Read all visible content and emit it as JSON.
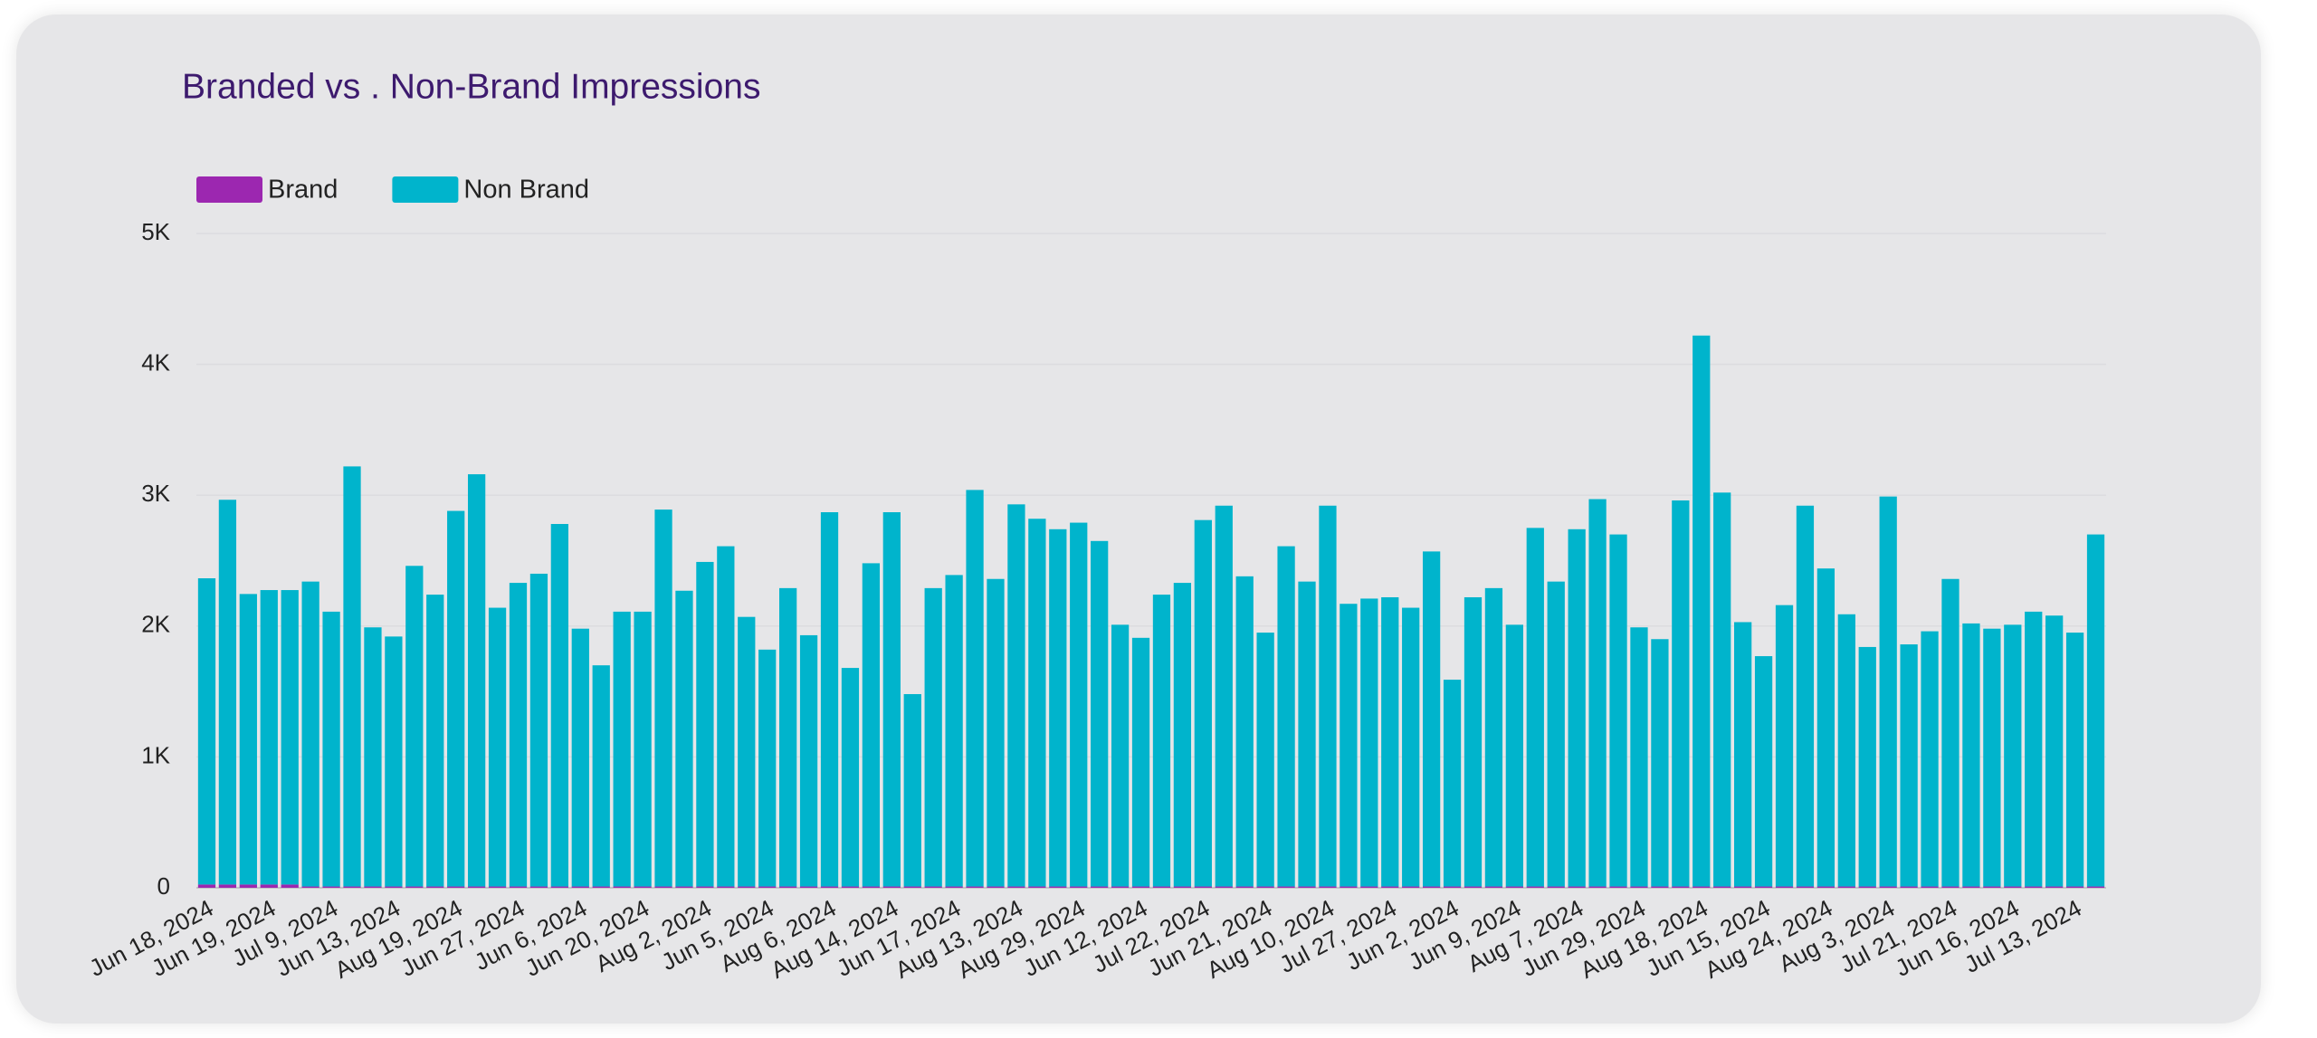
{
  "chart_data": {
    "type": "stacked_bar",
    "title": "Branded vs . Non-Brand Impressions",
    "categories": [
      "Jun 18, 2024",
      null,
      null,
      "Jun 19, 2024",
      null,
      null,
      "Jul 9, 2024",
      null,
      null,
      "Jun 13, 2024",
      null,
      null,
      "Aug 19, 2024",
      null,
      null,
      "Jun 27, 2024",
      null,
      null,
      "Jun 6, 2024",
      null,
      null,
      "Jun 20, 2024",
      null,
      null,
      "Aug 2, 2024",
      null,
      null,
      "Jun 5, 2024",
      null,
      null,
      "Aug 6, 2024",
      null,
      null,
      "Aug 14, 2024",
      null,
      null,
      "Jun 17, 2024",
      null,
      null,
      "Aug 13, 2024",
      null,
      null,
      "Aug 29, 2024",
      null,
      null,
      "Jun 12, 2024",
      null,
      null,
      "Jul 22, 2024",
      null,
      null,
      "Jun 21, 2024",
      null,
      null,
      "Aug 10, 2024",
      null,
      null,
      "Jul 27, 2024",
      null,
      null,
      "Jun 2, 2024",
      null,
      null,
      "Jun 9, 2024",
      null,
      null,
      "Aug 7, 2024",
      null,
      null,
      "Jun 29, 2024",
      null,
      null,
      "Aug 18, 2024",
      null,
      null,
      "Jun 15, 2024",
      null,
      null,
      "Aug 24, 2024",
      null,
      null,
      "Aug 3, 2024",
      null,
      null,
      "Jul 21, 2024",
      null,
      null,
      "Jun 16, 2024",
      null,
      null,
      "Jul 13, 2024",
      null
    ],
    "series": [
      {
        "name": "Brand",
        "color": "#9c27b0",
        "values": [
          25,
          25,
          25,
          25,
          25,
          10,
          10,
          10,
          10,
          10,
          10,
          10,
          10,
          10,
          10,
          10,
          10,
          10,
          10,
          10,
          10,
          10,
          10,
          10,
          10,
          10,
          10,
          10,
          10,
          10,
          10,
          10,
          10,
          10,
          10,
          10,
          10,
          10,
          10,
          10,
          10,
          10,
          10,
          10,
          10,
          10,
          10,
          10,
          10,
          10,
          10,
          10,
          10,
          10,
          10,
          10,
          10,
          10,
          10,
          10,
          10,
          10,
          10,
          10,
          10,
          10,
          10,
          10,
          10,
          10,
          10,
          10,
          10,
          10,
          10,
          10,
          10,
          10,
          10,
          10,
          10,
          10,
          10,
          10,
          10,
          10,
          10,
          10,
          10,
          10,
          10,
          10
        ]
      },
      {
        "name": "Non Brand",
        "color": "#00b4cc",
        "values": [
          2340,
          2940,
          2220,
          2250,
          2250,
          2330,
          2100,
          3210,
          1980,
          1910,
          2450,
          2230,
          2870,
          3150,
          2130,
          2320,
          2390,
          2770,
          1970,
          1690,
          2100,
          2100,
          2880,
          2260,
          2480,
          2600,
          2060,
          1810,
          2280,
          1920,
          2860,
          1670,
          2470,
          2860,
          1470,
          2280,
          2380,
          3030,
          2350,
          2920,
          2810,
          2730,
          2780,
          2640,
          2000,
          1900,
          2230,
          2320,
          2800,
          2910,
          2370,
          1940,
          2600,
          2330,
          2910,
          2160,
          2200,
          2210,
          2130,
          2560,
          1580,
          2210,
          2280,
          2000,
          2740,
          2330,
          2730,
          2960,
          2690,
          1980,
          1890,
          2950,
          4210,
          3010,
          2020,
          1760,
          2150,
          2910,
          2430,
          2080,
          1830,
          2980,
          1850,
          1950,
          2350,
          2010,
          1970,
          2000,
          2100,
          2070,
          1940,
          2690
        ]
      }
    ],
    "ylim": [
      0,
      5000
    ],
    "yticks": [
      0,
      {
        "value": 1000,
        "label": "1K"
      },
      {
        "value": 2000,
        "label": "2K"
      },
      {
        "value": 3000,
        "label": "3K"
      },
      {
        "value": 4000,
        "label": "4K"
      },
      {
        "value": 5000,
        "label": "5K"
      }
    ],
    "grid": true,
    "legend": "top-left"
  }
}
